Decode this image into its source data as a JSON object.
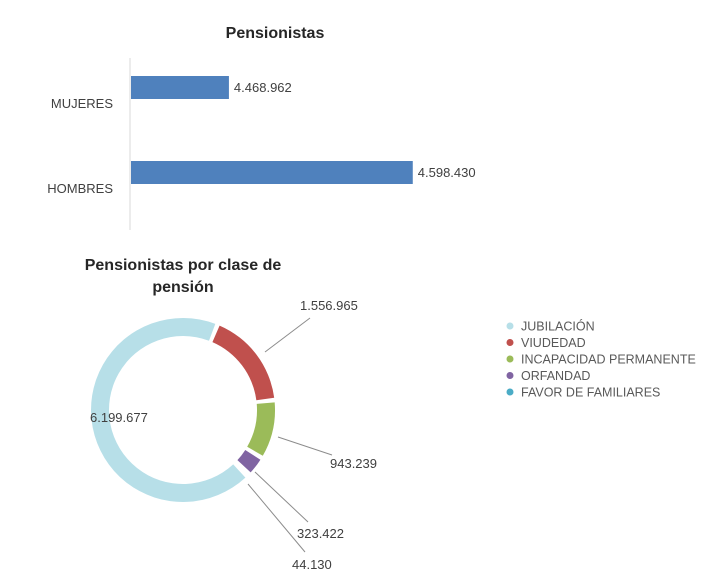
{
  "chart_data": [
    {
      "type": "bar",
      "orientation": "horizontal",
      "title": "Pensionistas",
      "categories": [
        "MUJERES",
        "HOMBRES"
      ],
      "values": [
        4468962,
        4598430
      ],
      "data_labels": [
        "4.468.962",
        "4.598.430"
      ],
      "xlim": [
        4400000,
        4600000
      ],
      "grid": false,
      "color": "#4f81bd"
    },
    {
      "type": "pie",
      "variant": "donut",
      "title_lines": [
        "Pensionistas por clase de",
        "pensión"
      ],
      "categories": [
        "JUBILACIÓN",
        "VIUDEDAD",
        "INCAPACIDAD PERMANENTE",
        "ORFANDAD",
        "FAVOR DE FAMILIARES"
      ],
      "values": [
        6199677,
        1556965,
        943239,
        323422,
        44130
      ],
      "data_labels": [
        "6.199.677",
        "1.556.965",
        "943.239",
        "323.422",
        "44.130"
      ],
      "colors": [
        "#b7dfe8",
        "#c0504d",
        "#9bbb59",
        "#8064a2",
        "#4bacc6"
      ],
      "legend": "right"
    }
  ]
}
